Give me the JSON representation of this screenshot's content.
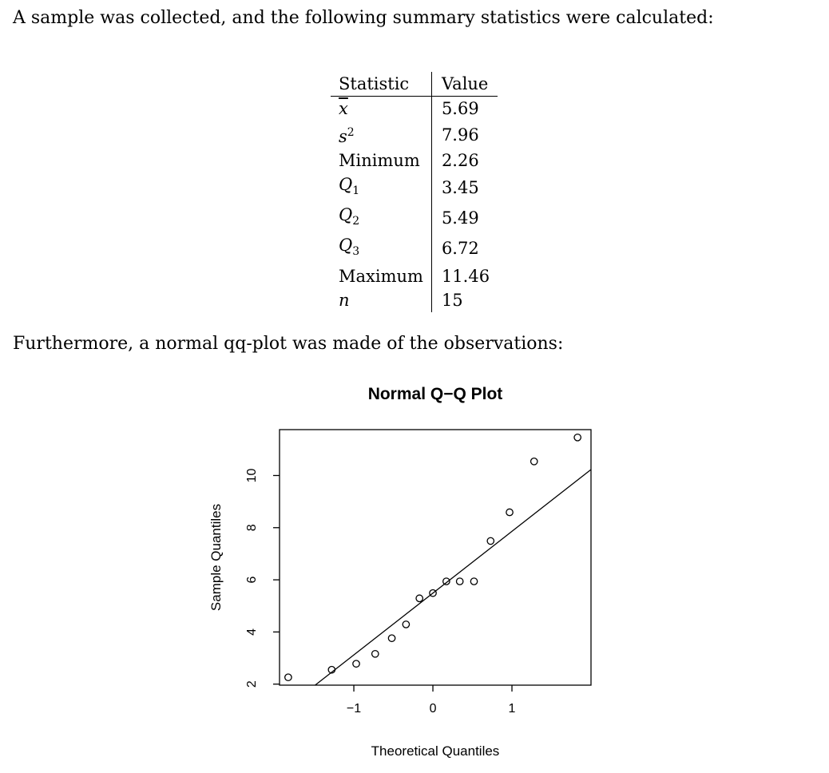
{
  "intro_text": "A sample was collected, and the following summary statistics were calculated:",
  "table": {
    "header_statistic": "Statistic",
    "header_value": "Value",
    "rows": [
      {
        "label": "x",
        "value": "5.69"
      },
      {
        "label": "s",
        "value": "7.96"
      },
      {
        "label": "Minimum",
        "value": "2.26"
      },
      {
        "label": "Q",
        "value": "3.45"
      },
      {
        "label": "Q",
        "value": "5.49"
      },
      {
        "label": "Q",
        "value": "6.72"
      },
      {
        "label": "Maximum",
        "value": "11.46"
      },
      {
        "label": "n",
        "value": "15"
      }
    ],
    "sup_2": "2",
    "sub_1": "1",
    "sub_2": "2",
    "sub_3": "3"
  },
  "after_text": "Furthermore, a normal qq-plot was made of the observations:",
  "chart_data": {
    "type": "scatter",
    "title": "Normal Q−Q Plot",
    "xlabel": "Theoretical Quantiles",
    "ylabel": "Sample Quantiles",
    "xlim": [
      -1.94,
      2.0
    ],
    "ylim": [
      1.96,
      11.76
    ],
    "x_ticks": [
      -1,
      0,
      1
    ],
    "x_tick_labels": [
      "−1",
      "0",
      "1"
    ],
    "y_ticks": [
      2,
      4,
      6,
      8,
      10
    ],
    "y_tick_labels": [
      "2",
      "4",
      "6",
      "8",
      "10"
    ],
    "points": {
      "x": [
        -1.83,
        -1.28,
        -0.97,
        -0.73,
        -0.52,
        -0.34,
        -0.17,
        0.0,
        0.17,
        0.34,
        0.52,
        0.73,
        0.97,
        1.28,
        1.83
      ],
      "y": [
        2.26,
        2.55,
        2.78,
        3.16,
        3.76,
        4.29,
        5.29,
        5.49,
        5.94,
        5.94,
        5.94,
        7.49,
        8.59,
        10.54,
        11.46
      ]
    },
    "line": {
      "intercept": 5.49,
      "slope": 2.37
    },
    "grid": false,
    "legend": "none"
  }
}
